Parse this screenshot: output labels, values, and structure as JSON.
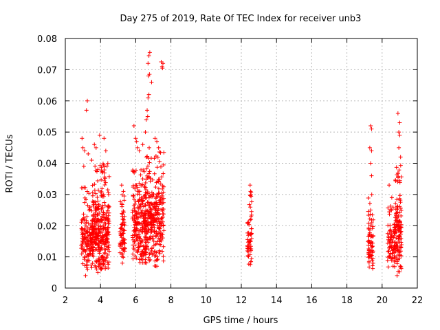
{
  "chart_data": {
    "type": "scatter",
    "title": "Day 275 of 2019, Rate Of TEC Index for receiver unb3",
    "xlabel": "GPS time / hours",
    "ylabel": "ROTI / TECUs",
    "xlim": [
      2,
      22
    ],
    "ylim": [
      0,
      0.08
    ],
    "xticks": [
      "2",
      "4",
      "6",
      "8",
      "10",
      "12",
      "14",
      "16",
      "18",
      "20",
      "22"
    ],
    "yticks": [
      "0",
      "0.01",
      "0.02",
      "0.03",
      "0.04",
      "0.05",
      "0.06",
      "0.07",
      "0.08"
    ],
    "grid": true,
    "marker": "+",
    "color": "#ff0000",
    "clusters": [
      {
        "x_range": [
          2.9,
          3.6
        ],
        "y_range": [
          0.006,
          0.033
        ],
        "n": 150
      },
      {
        "x_range": [
          3.5,
          4.5
        ],
        "y_range": [
          0.006,
          0.04
        ],
        "n": 320
      },
      {
        "x_range": [
          5.1,
          5.4
        ],
        "y_range": [
          0.008,
          0.03
        ],
        "n": 70
      },
      {
        "x_range": [
          5.8,
          6.6
        ],
        "y_range": [
          0.007,
          0.04
        ],
        "n": 220
      },
      {
        "x_range": [
          6.5,
          7.0
        ],
        "y_range": [
          0.008,
          0.045
        ],
        "n": 150
      },
      {
        "x_range": [
          7.0,
          7.6
        ],
        "y_range": [
          0.007,
          0.046
        ],
        "n": 170
      },
      {
        "x_range": [
          12.35,
          12.6
        ],
        "y_range": [
          0.007,
          0.032
        ],
        "n": 60
      },
      {
        "x_range": [
          19.2,
          19.5
        ],
        "y_range": [
          0.006,
          0.03
        ],
        "n": 70
      },
      {
        "x_range": [
          20.3,
          20.75
        ],
        "y_range": [
          0.006,
          0.027
        ],
        "n": 80
      },
      {
        "x_range": [
          20.7,
          21.1
        ],
        "y_range": [
          0.005,
          0.04
        ],
        "n": 130
      }
    ],
    "points": [
      {
        "x": 2.95,
        "y": 0.048
      },
      {
        "x": 3.0,
        "y": 0.045
      },
      {
        "x": 3.1,
        "y": 0.044
      },
      {
        "x": 3.05,
        "y": 0.039
      },
      {
        "x": 3.25,
        "y": 0.06
      },
      {
        "x": 3.2,
        "y": 0.057
      },
      {
        "x": 3.15,
        "y": 0.004
      },
      {
        "x": 3.3,
        "y": 0.043
      },
      {
        "x": 3.5,
        "y": 0.041
      },
      {
        "x": 3.65,
        "y": 0.046
      },
      {
        "x": 3.75,
        "y": 0.045
      },
      {
        "x": 3.85,
        "y": 0.005
      },
      {
        "x": 3.95,
        "y": 0.049
      },
      {
        "x": 4.2,
        "y": 0.048
      },
      {
        "x": 4.3,
        "y": 0.044
      },
      {
        "x": 5.2,
        "y": 0.033
      },
      {
        "x": 5.3,
        "y": 0.031
      },
      {
        "x": 5.9,
        "y": 0.052
      },
      {
        "x": 6.0,
        "y": 0.048
      },
      {
        "x": 6.1,
        "y": 0.045
      },
      {
        "x": 6.05,
        "y": 0.047
      },
      {
        "x": 6.2,
        "y": 0.044
      },
      {
        "x": 6.4,
        "y": 0.046
      },
      {
        "x": 6.55,
        "y": 0.05
      },
      {
        "x": 6.6,
        "y": 0.054
      },
      {
        "x": 6.65,
        "y": 0.057
      },
      {
        "x": 6.7,
        "y": 0.061
      },
      {
        "x": 6.75,
        "y": 0.062
      },
      {
        "x": 6.72,
        "y": 0.068
      },
      {
        "x": 6.78,
        "y": 0.0685
      },
      {
        "x": 6.7,
        "y": 0.072
      },
      {
        "x": 6.75,
        "y": 0.0745
      },
      {
        "x": 6.8,
        "y": 0.0755
      },
      {
        "x": 6.9,
        "y": 0.066
      },
      {
        "x": 6.68,
        "y": 0.055
      },
      {
        "x": 7.1,
        "y": 0.048
      },
      {
        "x": 7.2,
        "y": 0.047
      },
      {
        "x": 7.3,
        "y": 0.045
      },
      {
        "x": 7.5,
        "y": 0.071
      },
      {
        "x": 7.55,
        "y": 0.072
      },
      {
        "x": 7.45,
        "y": 0.0725
      },
      {
        "x": 7.52,
        "y": 0.0705
      },
      {
        "x": 12.5,
        "y": 0.033
      },
      {
        "x": 19.35,
        "y": 0.052
      },
      {
        "x": 19.4,
        "y": 0.051
      },
      {
        "x": 19.3,
        "y": 0.045
      },
      {
        "x": 19.4,
        "y": 0.044
      },
      {
        "x": 19.35,
        "y": 0.04
      },
      {
        "x": 19.4,
        "y": 0.036
      },
      {
        "x": 20.4,
        "y": 0.033
      },
      {
        "x": 20.55,
        "y": 0.029
      },
      {
        "x": 20.9,
        "y": 0.056
      },
      {
        "x": 21.0,
        "y": 0.053
      },
      {
        "x": 20.95,
        "y": 0.05
      },
      {
        "x": 21.0,
        "y": 0.049
      },
      {
        "x": 20.95,
        "y": 0.045
      },
      {
        "x": 21.05,
        "y": 0.042
      },
      {
        "x": 20.85,
        "y": 0.004
      }
    ]
  }
}
